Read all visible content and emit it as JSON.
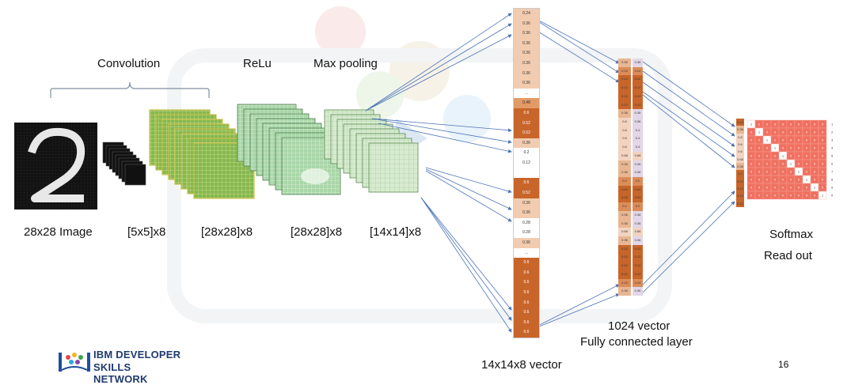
{
  "labels": {
    "convolution": "Convolution",
    "relu": "ReLu",
    "max_pooling": "Max pooling",
    "image": "28x28 Image",
    "kernels": "[5x5]x8",
    "conv_out": "[28x28]x8",
    "relu_out": "[28x28]x8",
    "pool_out": "[14x14]x8",
    "flat_vector": "14x14x8 vector",
    "fc_line1": "1024 vector",
    "fc_line2": "Fully connected layer",
    "softmax_line1": "Softmax",
    "softmax_line2": "Read out",
    "page_number": "16"
  },
  "logo": {
    "line1": "IBM DEVELOPER",
    "line2": "SKILLS NETWORK"
  },
  "flat_vector_values": [
    "0.24",
    "0.36",
    "0.36",
    "0.36",
    "0.36",
    "0.36",
    "0.36",
    "0.36",
    "...",
    "0.48",
    "0.6",
    "0.52",
    "0.52",
    "0.36",
    "0.2",
    "0.12",
    "",
    "0.6",
    "0.52",
    "0.36",
    "0.36",
    "0.28",
    "0.28",
    "0.36",
    "...",
    "0.6",
    "0.6",
    "0.6",
    "0.6",
    "0.6",
    "0.6",
    "0.6",
    "0.6"
  ],
  "flat_vector_shades": [
    1,
    1,
    1,
    1,
    1,
    1,
    1,
    1,
    0,
    2,
    3,
    3,
    3,
    1,
    0,
    0,
    0,
    3,
    3,
    1,
    1,
    0,
    0,
    1,
    0,
    3,
    3,
    3,
    3,
    3,
    3,
    3,
    3
  ],
  "fc_col1": [
    "0.36",
    "0.24",
    "0.12",
    "0.12",
    "0.12",
    "0.12",
    "0.36",
    "0.6",
    "0.6",
    "0.6",
    "0.6",
    "0.68",
    "0.36",
    "0.36",
    "0.2",
    "0.04",
    "0.04",
    "0.2",
    "0.36",
    "0.36",
    "0.68",
    "0.36",
    "0.12",
    "0.12",
    "0.12",
    "0.12",
    "0.24",
    "0.36"
  ],
  "fc_col2": [
    "0.36",
    "0.24",
    "0.12",
    "0.12",
    "0.12",
    "0.12",
    "0.36",
    "0.36",
    "0.4",
    "0.4",
    "0.4",
    "0.68",
    "0.36",
    "0.36",
    "0.2",
    "0.04",
    "0.04",
    "0.2",
    "0.36",
    "0.36",
    "0.68",
    "0.36",
    "0.12",
    "0.12",
    "0.12",
    "0.12",
    "0.24",
    "0.36"
  ],
  "softmax_side": [
    "0.12",
    "0.36",
    "0.6",
    "0.6",
    "0.6",
    "0.68",
    "0.36",
    "0.2",
    "0.12",
    "0.12",
    "0.12",
    "0.12"
  ],
  "softmax_right": [
    "1",
    "2",
    "3",
    "4",
    "5",
    "6",
    "7",
    "8",
    "9",
    "0"
  ],
  "colors": {
    "deep_orange": "#c8652a",
    "mid_orange": "#e29a66",
    "light_orange": "#f2ccb0",
    "softmax_red": "#f07060",
    "green": "#7fb24f"
  }
}
